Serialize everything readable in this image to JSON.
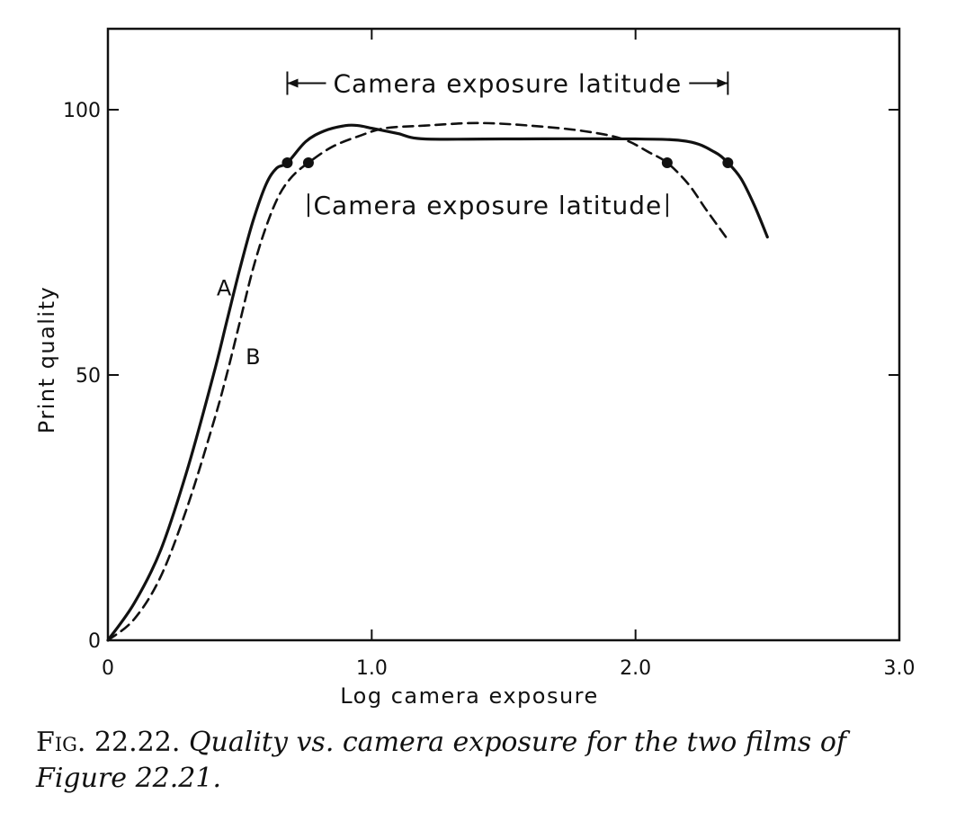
{
  "chart_data": {
    "type": "line",
    "xlabel": "Log camera exposure",
    "ylabel": "Print quality",
    "xlim": [
      0,
      3.0
    ],
    "ylim": [
      0,
      100
    ],
    "x_ticks": [
      {
        "value": 0,
        "label": "0"
      },
      {
        "value": 1.0,
        "label": "1.0"
      },
      {
        "value": 2.0,
        "label": "2.0"
      },
      {
        "value": 3.0,
        "label": "3.0"
      }
    ],
    "y_ticks": [
      {
        "value": 0,
        "label": "0"
      },
      {
        "value": 50,
        "label": "50"
      },
      {
        "value": 100,
        "label": "100"
      }
    ],
    "grid": false,
    "series": [
      {
        "name": "A",
        "style": "solid",
        "x": [
          0,
          0.1,
          0.2,
          0.3,
          0.4,
          0.45,
          0.5,
          0.55,
          0.6,
          0.64,
          0.68,
          0.75,
          0.82,
          0.9,
          0.95,
          1.0,
          1.05,
          1.1,
          1.2,
          1.5,
          2.0,
          2.2,
          2.3,
          2.35,
          2.4,
          2.45,
          2.5
        ],
        "y": [
          0,
          7,
          17,
          32,
          50,
          60,
          70,
          79,
          86,
          89,
          90,
          94,
          96,
          97,
          97,
          96.5,
          96,
          95.5,
          94.5,
          94.5,
          94.5,
          94,
          92,
          90,
          87,
          82,
          76
        ]
      },
      {
        "name": "B",
        "style": "dashed",
        "x": [
          0,
          0.1,
          0.2,
          0.3,
          0.4,
          0.45,
          0.5,
          0.55,
          0.6,
          0.65,
          0.7,
          0.76,
          0.85,
          0.95,
          1.05,
          1.2,
          1.4,
          1.6,
          1.8,
          1.95,
          2.05,
          2.12,
          2.2,
          2.27,
          2.35
        ],
        "y": [
          0,
          4,
          12,
          25,
          41,
          50,
          60,
          70,
          78,
          84,
          87.5,
          90,
          93,
          95,
          96.5,
          97,
          97.5,
          97,
          96,
          94.5,
          92,
          90,
          86,
          81,
          75.5
        ]
      }
    ],
    "markers": [
      {
        "series": "A",
        "x": 0.68,
        "y": 90
      },
      {
        "series": "A",
        "x": 2.35,
        "y": 90
      },
      {
        "series": "B",
        "x": 0.76,
        "y": 90
      },
      {
        "series": "B",
        "x": 2.12,
        "y": 90
      }
    ],
    "curve_labels": [
      {
        "text": "A",
        "x": 0.44,
        "y": 65
      },
      {
        "text": "B",
        "x": 0.55,
        "y": 52
      }
    ],
    "annotations": [
      {
        "text": "Camera exposure latitude",
        "x_start": 0.68,
        "x_end": 2.35,
        "y": 105
      },
      {
        "text": "Camera exposure latitude",
        "x_start": 0.76,
        "x_end": 2.12,
        "y": 82
      }
    ]
  },
  "caption": {
    "label": "Fig. 22.22.",
    "text": "Quality vs. camera exposure for the two films of Figure 22.21."
  }
}
